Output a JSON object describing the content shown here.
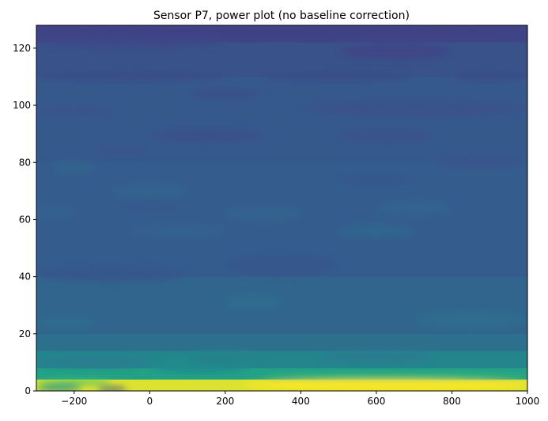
{
  "chart_data": {
    "type": "heatmap",
    "title": "Sensor P7, power plot (no baseline correction)",
    "xlabel": "",
    "ylabel": "",
    "xlim": [
      -300,
      1000
    ],
    "ylim": [
      0,
      128
    ],
    "x_ticks": [
      -200,
      0,
      200,
      400,
      600,
      800,
      1000
    ],
    "y_ticks": [
      0,
      20,
      40,
      60,
      80,
      100,
      120
    ],
    "x_tick_labels": [
      "−200",
      "0",
      "200",
      "400",
      "600",
      "800",
      "1000"
    ],
    "y_tick_labels": [
      "0",
      "20",
      "40",
      "60",
      "80",
      "100",
      "120"
    ],
    "grid": false,
    "colormap": "viridis",
    "bands": [
      {
        "y": [
          0,
          4
        ],
        "level": 0.97
      },
      {
        "y": [
          4,
          8
        ],
        "level": 0.72
      },
      {
        "y": [
          8,
          14
        ],
        "level": 0.57
      },
      {
        "y": [
          14,
          20
        ],
        "level": 0.46
      },
      {
        "y": [
          20,
          40
        ],
        "level": 0.41
      },
      {
        "y": [
          40,
          80
        ],
        "level": 0.37
      },
      {
        "y": [
          80,
          110
        ],
        "level": 0.35
      },
      {
        "y": [
          110,
          122
        ],
        "level": 0.32
      },
      {
        "y": [
          122,
          128
        ],
        "level": 0.26
      }
    ],
    "features": [
      {
        "x": [
          -300,
          -180
        ],
        "y": [
          0,
          2
        ],
        "level": 0.62
      },
      {
        "x": [
          -140,
          -60
        ],
        "y": [
          0,
          1.5
        ],
        "level": 0.3
      },
      {
        "x": [
          -300,
          -100
        ],
        "y": [
          2,
          4
        ],
        "level": 0.82
      },
      {
        "x": [
          250,
          1000
        ],
        "y": [
          0,
          4
        ],
        "level": 1.0
      },
      {
        "x": [
          0,
          260
        ],
        "y": [
          6,
          12
        ],
        "level": 0.6
      },
      {
        "x": [
          100,
          300
        ],
        "y": [
          9,
          14
        ],
        "level": 0.55
      },
      {
        "x": [
          -300,
          0
        ],
        "y": [
          8,
          12
        ],
        "level": 0.52
      },
      {
        "x": [
          300,
          1000
        ],
        "y": [
          4,
          6
        ],
        "level": 0.8
      },
      {
        "x": [
          450,
          750
        ],
        "y": [
          10,
          14
        ],
        "level": 0.5
      },
      {
        "x": [
          200,
          350
        ],
        "y": [
          28,
          34
        ],
        "level": 0.44
      },
      {
        "x": [
          -300,
          -150
        ],
        "y": [
          22,
          26
        ],
        "level": 0.44
      },
      {
        "x": [
          700,
          1000
        ],
        "y": [
          22,
          28
        ],
        "level": 0.44
      },
      {
        "x": [
          -300,
          100
        ],
        "y": [
          38,
          44
        ],
        "level": 0.34
      },
      {
        "x": [
          200,
          500
        ],
        "y": [
          40,
          48
        ],
        "level": 0.34
      },
      {
        "x": [
          500,
          700
        ],
        "y": [
          54,
          58
        ],
        "level": 0.42
      },
      {
        "x": [
          -50,
          200
        ],
        "y": [
          54,
          58
        ],
        "level": 0.4
      },
      {
        "x": [
          -300,
          -200
        ],
        "y": [
          61,
          64
        ],
        "level": 0.4
      },
      {
        "x": [
          -100,
          100
        ],
        "y": [
          62,
          66
        ],
        "level": 0.35
      },
      {
        "x": [
          200,
          400
        ],
        "y": [
          60,
          64
        ],
        "level": 0.41
      },
      {
        "x": [
          600,
          800
        ],
        "y": [
          62,
          66
        ],
        "level": 0.41
      },
      {
        "x": [
          -100,
          100
        ],
        "y": [
          68,
          72
        ],
        "level": 0.41
      },
      {
        "x": [
          500,
          700
        ],
        "y": [
          72,
          76
        ],
        "level": 0.34
      },
      {
        "x": [
          -250,
          -150
        ],
        "y": [
          76,
          80
        ],
        "level": 0.41
      },
      {
        "x": [
          -150,
          0
        ],
        "y": [
          83,
          86
        ],
        "level": 0.33
      },
      {
        "x": [
          0,
          300
        ],
        "y": [
          87,
          92
        ],
        "level": 0.31
      },
      {
        "x": [
          500,
          750
        ],
        "y": [
          87,
          92
        ],
        "level": 0.32
      },
      {
        "x": [
          750,
          1000
        ],
        "y": [
          78,
          82
        ],
        "level": 0.33
      },
      {
        "x": [
          400,
          1000
        ],
        "y": [
          96,
          102
        ],
        "level": 0.32
      },
      {
        "x": [
          -300,
          -100
        ],
        "y": [
          96,
          100
        ],
        "level": 0.33
      },
      {
        "x": [
          100,
          300
        ],
        "y": [
          102,
          106
        ],
        "level": 0.31
      },
      {
        "x": [
          -300,
          200
        ],
        "y": [
          108,
          112
        ],
        "level": 0.3
      },
      {
        "x": [
          300,
          700
        ],
        "y": [
          108,
          112
        ],
        "level": 0.3
      },
      {
        "x": [
          800,
          1000
        ],
        "y": [
          108,
          112
        ],
        "level": 0.3
      },
      {
        "x": [
          500,
          800
        ],
        "y": [
          116,
          122
        ],
        "level": 0.27
      },
      {
        "x": [
          -300,
          200
        ],
        "y": [
          120,
          124
        ],
        "level": 0.28
      },
      {
        "x": [
          -300,
          1000
        ],
        "y": [
          124,
          128
        ],
        "level": 0.24
      }
    ]
  }
}
